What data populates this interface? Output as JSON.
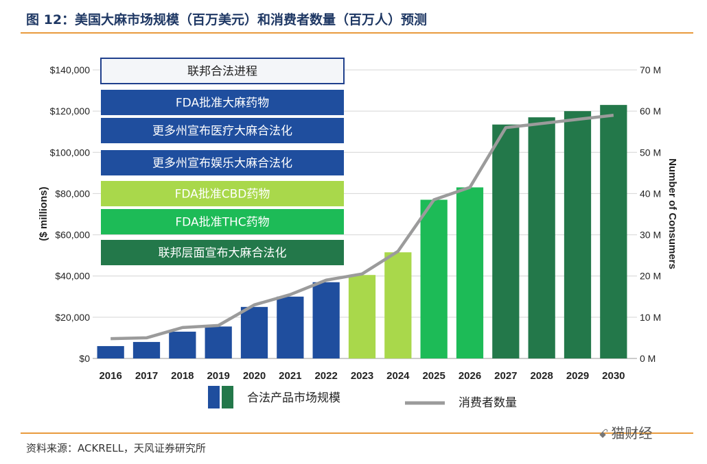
{
  "figure": {
    "title": "图 12：美国大麻市场规模（百万美元）和消费者数量（百万人）预测",
    "source": "资料来源：ACKRELL，天风证券研究所",
    "watermark": "猫财经",
    "watermark_icon": "wechat-icon"
  },
  "chart_data": {
    "type": "bar",
    "title": "",
    "categories": [
      "2016",
      "2017",
      "2018",
      "2019",
      "2020",
      "2021",
      "2022",
      "2023",
      "2024",
      "2025",
      "2026",
      "2027",
      "2028",
      "2029",
      "2030"
    ],
    "series": [
      {
        "name": "合法产品市场规模",
        "axis": "left",
        "values": [
          6000,
          8000,
          13000,
          15500,
          25000,
          30000,
          37000,
          40500,
          51500,
          77000,
          83000,
          113500,
          117000,
          120000,
          123000
        ],
        "colors": [
          "#1f4e9e",
          "#1f4e9e",
          "#1f4e9e",
          "#1f4e9e",
          "#1f4e9e",
          "#1f4e9e",
          "#1f4e9e",
          "#a9d84b",
          "#a9d84b",
          "#1dbb57",
          "#1dbb57",
          "#23784a",
          "#23784a",
          "#23784a",
          "#23784a"
        ]
      },
      {
        "name": "消费者数量",
        "axis": "right",
        "type": "line",
        "color": "#9b9b9b",
        "values": [
          4.8,
          5,
          7.5,
          8,
          13,
          15.5,
          19,
          20.5,
          26,
          38.5,
          41.5,
          56,
          57,
          58,
          59
        ]
      }
    ],
    "ylabel": "($ millions)",
    "ylim": [
      0,
      140000
    ],
    "yticks": [
      {
        "value": 0,
        "label": "$0"
      },
      {
        "value": 20000,
        "label": "$20,000"
      },
      {
        "value": 40000,
        "label": "$40,000"
      },
      {
        "value": 60000,
        "label": "$60,000"
      },
      {
        "value": 80000,
        "label": "$80,000"
      },
      {
        "value": 100000,
        "label": "$100,000"
      },
      {
        "value": 120000,
        "label": "$120,000"
      },
      {
        "value": 140000,
        "label": "$140,000"
      }
    ],
    "y2label": "Number of Consumers",
    "y2lim": [
      0,
      70
    ],
    "y2ticks": [
      {
        "value": 0,
        "label": "0 M"
      },
      {
        "value": 10,
        "label": "10 M"
      },
      {
        "value": 20,
        "label": "20 M"
      },
      {
        "value": 30,
        "label": "30 M"
      },
      {
        "value": 40,
        "label": "40 M"
      },
      {
        "value": 50,
        "label": "50 M"
      },
      {
        "value": 60,
        "label": "60 M"
      },
      {
        "value": 70,
        "label": "70 M"
      }
    ],
    "grid": true,
    "annotations": [
      {
        "label": "联邦合法进程",
        "fill": "#f4f6f9",
        "border": "#1f3f8c",
        "text_color": "#222222"
      },
      {
        "label": "FDA批准大麻药物",
        "fill": "#1f4e9e",
        "border": "#1f4e9e",
        "text_color": "#ffffff"
      },
      {
        "label": "更多州宣布医疗大麻合法化",
        "fill": "#1f4e9e",
        "border": "#1f4e9e",
        "text_color": "#ffffff"
      },
      {
        "label": "更多州宣布娱乐大麻合法化",
        "fill": "#1f4e9e",
        "border": "#1f4e9e",
        "text_color": "#ffffff"
      },
      {
        "label": "FDA批准CBD药物",
        "fill": "#a9d84b",
        "border": "#a9d84b",
        "text_color": "#ffffff"
      },
      {
        "label": "FDA批准THC药物",
        "fill": "#1dbb57",
        "border": "#1dbb57",
        "text_color": "#ffffff"
      },
      {
        "label": "联邦层面宣布大麻合法化",
        "fill": "#23784a",
        "border": "#23784a",
        "text_color": "#ffffff"
      }
    ],
    "legend": {
      "position": "bottom",
      "items": [
        {
          "label": "合法产品市场规模",
          "kind": "bar",
          "colors": [
            "#1f4e9e",
            "#23784a"
          ]
        },
        {
          "label": "消费者数量",
          "kind": "line",
          "colors": [
            "#9b9b9b"
          ]
        }
      ]
    }
  }
}
